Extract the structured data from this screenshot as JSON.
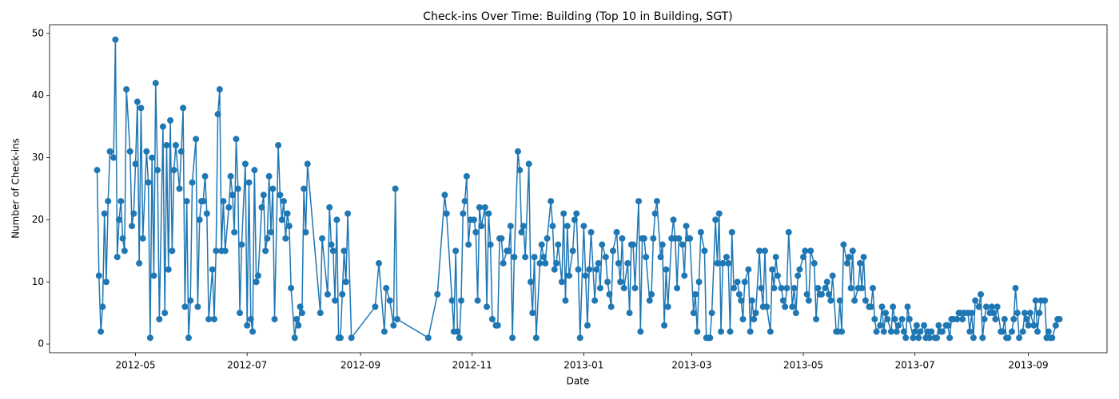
{
  "chart_data": {
    "type": "line",
    "title": "Check-ins Over Time: Building (Top 10 in Building, SGT)",
    "x_label": "Date",
    "y_label": "Number of Check-ins",
    "color": "#1f77b4",
    "markers": true,
    "xlim": [
      15414,
      15992
    ],
    "ylim": [
      -1.4,
      51.4
    ],
    "xticks": [
      {
        "value": 15461,
        "label": "2012-05"
      },
      {
        "value": 15522,
        "label": "2012-07"
      },
      {
        "value": 15584,
        "label": "2012-09"
      },
      {
        "value": 15645,
        "label": "2012-11"
      },
      {
        "value": 15706,
        "label": "2013-01"
      },
      {
        "value": 15765,
        "label": "2013-03"
      },
      {
        "value": 15826,
        "label": "2013-05"
      },
      {
        "value": 15887,
        "label": "2013-07"
      },
      {
        "value": 15949,
        "label": "2013-09"
      }
    ],
    "yticks": [
      0,
      10,
      20,
      30,
      40,
      50
    ],
    "series": [
      {
        "name": "Check-ins",
        "x": [
          15440,
          15441,
          15442,
          15443,
          15444,
          15445,
          15446,
          15447,
          15449,
          15450,
          15451,
          15452,
          15453,
          15454,
          15455,
          15456,
          15458,
          15459,
          15460,
          15461,
          15462,
          15463,
          15464,
          15465,
          15467,
          15468,
          15469,
          15470,
          15471,
          15472,
          15473,
          15474,
          15476,
          15477,
          15478,
          15479,
          15480,
          15481,
          15482,
          15483,
          15485,
          15486,
          15487,
          15488,
          15489,
          15490,
          15491,
          15492,
          15494,
          15495,
          15496,
          15497,
          15498,
          15499,
          15500,
          15501,
          15503,
          15504,
          15505,
          15506,
          15507,
          15508,
          15509,
          15510,
          15512,
          15513,
          15514,
          15515,
          15516,
          15517,
          15518,
          15519,
          15521,
          15522,
          15523,
          15524,
          15525,
          15526,
          15527,
          15528,
          15530,
          15531,
          15532,
          15533,
          15534,
          15535,
          15536,
          15537,
          15539,
          15540,
          15541,
          15542,
          15543,
          15544,
          15545,
          15546,
          15548,
          15549,
          15550,
          15551,
          15552,
          15553,
          15554,
          15555,
          15562,
          15563,
          15566,
          15567,
          15568,
          15569,
          15570,
          15571,
          15572,
          15573,
          15574,
          15575,
          15576,
          15577,
          15579,
          15592,
          15594,
          15597,
          15598,
          15600,
          15602,
          15603,
          15604,
          15621,
          15626,
          15630,
          15631,
          15634,
          15635,
          15636,
          15637,
          15638,
          15639,
          15640,
          15641,
          15642,
          15643,
          15644,
          15646,
          15647,
          15648,
          15649,
          15650,
          15652,
          15653,
          15654,
          15655,
          15656,
          15658,
          15659,
          15660,
          15661,
          15662,
          15664,
          15665,
          15666,
          15667,
          15668,
          15670,
          15671,
          15672,
          15673,
          15674,
          15676,
          15677,
          15678,
          15679,
          15680,
          15682,
          15683,
          15684,
          15685,
          15686,
          15688,
          15689,
          15690,
          15691,
          15692,
          15694,
          15695,
          15696,
          15697,
          15698,
          15700,
          15701,
          15702,
          15703,
          15704,
          15706,
          15707,
          15708,
          15709,
          15710,
          15712,
          15713,
          15714,
          15715,
          15716,
          15718,
          15719,
          15720,
          15721,
          15722,
          15724,
          15725,
          15726,
          15727,
          15728,
          15730,
          15731,
          15732,
          15733,
          15734,
          15736,
          15737,
          15738,
          15739,
          15740,
          15742,
          15743,
          15744,
          15745,
          15746,
          15748,
          15749,
          15750,
          15751,
          15752,
          15754,
          15755,
          15756,
          15757,
          15758,
          15760,
          15761,
          15762,
          15763,
          15764,
          15766,
          15767,
          15768,
          15769,
          15770,
          15772,
          15773,
          15774,
          15775,
          15776,
          15778,
          15779,
          15780,
          15781,
          15782,
          15784,
          15785,
          15786,
          15787,
          15788,
          15790,
          15791,
          15792,
          15793,
          15794,
          15796,
          15797,
          15798,
          15799,
          15800,
          15802,
          15803,
          15804,
          15805,
          15806,
          15808,
          15809,
          15810,
          15811,
          15812,
          15814,
          15815,
          15816,
          15817,
          15818,
          15820,
          15821,
          15822,
          15823,
          15824,
          15826,
          15827,
          15828,
          15829,
          15830,
          15832,
          15833,
          15834,
          15835,
          15836,
          15838,
          15839,
          15840,
          15841,
          15842,
          15844,
          15845,
          15846,
          15847,
          15848,
          15850,
          15851,
          15852,
          15853,
          15854,
          15856,
          15857,
          15858,
          15859,
          15860,
          15862,
          15863,
          15864,
          15865,
          15866,
          15868,
          15869,
          15870,
          15871,
          15872,
          15874,
          15875,
          15876,
          15877,
          15878,
          15880,
          15881,
          15882,
          15883,
          15884,
          15886,
          15887,
          15888,
          15889,
          15890,
          15892,
          15893,
          15894,
          15895,
          15896,
          15898,
          15899,
          15900,
          15901,
          15902,
          15904,
          15905,
          15906,
          15907,
          15908,
          15910,
          15911,
          15912,
          15913,
          15914,
          15916,
          15917,
          15918,
          15919,
          15920,
          15922,
          15923,
          15924,
          15925,
          15926,
          15928,
          15929,
          15930,
          15931,
          15932,
          15934,
          15935,
          15936,
          15937,
          15938,
          15940,
          15941,
          15942,
          15943,
          15944,
          15946,
          15947,
          15948,
          15949,
          15950,
          15952,
          15953,
          15954,
          15955,
          15956,
          15958,
          15959,
          15960,
          15961,
          15962,
          15964,
          15965,
          15966
        ],
        "values": [
          28,
          11,
          2,
          6,
          21,
          10,
          23,
          31,
          30,
          49,
          14,
          20,
          23,
          17,
          15,
          41,
          31,
          19,
          21,
          29,
          39,
          13,
          38,
          17,
          31,
          26,
          1,
          30,
          11,
          42,
          28,
          4,
          35,
          5,
          32,
          12,
          36,
          15,
          28,
          32,
          25,
          31,
          38,
          6,
          23,
          1,
          7,
          26,
          33,
          6,
          20,
          23,
          23,
          27,
          21,
          4,
          12,
          4,
          15,
          37,
          41,
          15,
          23,
          15,
          22,
          27,
          24,
          18,
          33,
          25,
          5,
          16,
          29,
          3,
          26,
          4,
          2,
          28,
          10,
          11,
          22,
          24,
          15,
          17,
          27,
          18,
          25,
          4,
          32,
          24,
          20,
          23,
          17,
          21,
          19,
          9,
          1,
          4,
          3,
          6,
          5,
          25,
          18,
          29,
          5,
          17,
          8,
          22,
          16,
          15,
          7,
          20,
          1,
          1,
          8,
          15,
          10,
          21,
          1,
          6,
          13,
          2,
          9,
          7,
          3,
          25,
          4,
          1,
          8,
          24,
          21,
          7,
          2,
          15,
          2,
          1,
          7,
          21,
          23,
          27,
          16,
          20,
          20,
          18,
          7,
          22,
          19,
          22,
          6,
          21,
          16,
          4,
          3,
          3,
          17,
          17,
          13,
          15,
          15,
          19,
          1,
          14,
          31,
          28,
          18,
          19,
          14,
          29,
          10,
          5,
          14,
          1,
          13,
          16,
          14,
          13,
          17,
          23,
          19,
          12,
          13,
          16,
          10,
          21,
          7,
          19,
          11,
          15,
          20,
          21,
          12,
          1,
          19,
          11,
          3,
          12,
          18,
          7,
          12,
          13,
          9,
          16,
          14,
          10,
          8,
          6,
          15,
          18,
          13,
          10,
          17,
          9,
          13,
          5,
          16,
          16,
          9,
          23,
          2,
          17,
          17,
          14,
          7,
          8,
          17,
          21,
          23,
          14,
          16,
          3,
          12,
          6,
          17,
          20,
          17,
          9,
          17,
          16,
          11,
          19,
          17,
          17,
          5,
          8,
          2,
          10,
          18,
          15,
          1,
          1,
          1,
          5,
          20,
          13,
          21,
          2,
          13,
          14,
          13,
          2,
          18,
          9,
          10,
          8,
          7,
          4,
          10,
          12,
          2,
          7,
          4,
          5,
          15,
          9,
          6,
          15,
          6,
          2,
          12,
          9,
          14,
          11,
          9,
          7,
          6,
          9,
          18,
          6,
          9,
          5,
          11,
          12,
          14,
          15,
          8,
          7,
          15,
          13,
          4,
          9,
          8,
          8,
          9,
          10,
          8,
          7,
          11,
          2,
          2,
          7,
          2,
          16,
          13,
          14,
          9,
          15,
          7,
          9,
          13,
          9,
          14,
          7,
          6,
          6,
          9,
          4,
          2,
          3,
          6,
          2,
          5,
          4,
          2,
          6,
          4,
          2,
          3,
          4,
          2,
          1,
          6,
          4,
          1,
          2,
          3,
          1,
          2,
          3,
          1,
          2,
          1,
          2,
          1,
          1,
          3,
          2,
          2,
          3,
          3,
          1,
          4,
          4,
          4,
          5,
          5,
          4,
          5,
          5,
          2,
          5,
          1,
          7,
          6,
          8,
          1,
          4,
          6,
          5,
          6,
          5,
          4,
          6,
          2,
          2,
          4,
          1,
          1,
          2,
          4,
          9,
          5,
          1,
          2,
          5,
          4,
          3,
          5,
          3,
          7,
          2,
          5,
          7,
          7,
          1,
          2,
          1,
          1,
          3,
          4,
          4
        ]
      }
    ]
  }
}
